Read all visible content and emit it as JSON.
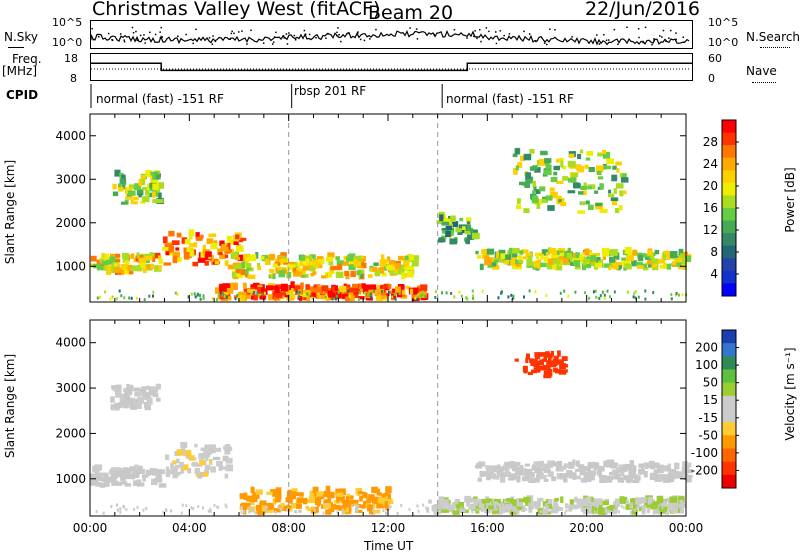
{
  "header": {
    "title": "Christmas Valley West (fitACF)",
    "beam": "Beam 20",
    "date": "22/Jun/2016"
  },
  "nsky_panel": {
    "left_label": "N.Sky",
    "right_label": "N.Search",
    "left_ticks": [
      "10^5",
      "10^0"
    ],
    "right_ticks": [
      "10^5",
      "10^0"
    ]
  },
  "freq_panel": {
    "left_label_1": "Freq.",
    "left_label_2": "[MHz]",
    "right_label": "Nave",
    "left_ticks": [
      "18",
      "8"
    ],
    "right_ticks": [
      "60",
      "0"
    ]
  },
  "cpid": {
    "label": "CPID",
    "segments": [
      {
        "text": "normal (fast) -151 RF",
        "start_h": 0,
        "end_h": 8
      },
      {
        "text": "rbsp 201 RF",
        "start_h": 8,
        "end_h": 14
      },
      {
        "text": "normal (fast) -151 RF",
        "start_h": 14,
        "end_h": 24
      }
    ]
  },
  "power_panel": {
    "ylabel": "Slant Range [km]",
    "yticks": [
      "4000",
      "3000",
      "2000",
      "1000"
    ],
    "cbar_label": "Power [dB]",
    "cbar_ticks": [
      "28",
      "24",
      "20",
      "16",
      "12",
      "8",
      "4"
    ],
    "cbar_colors": [
      "#ff0000",
      "#ff3300",
      "#ff7700",
      "#ffaa00",
      "#ffd000",
      "#eeee00",
      "#aadd22",
      "#66cc44",
      "#44aa55",
      "#338866",
      "#226677",
      "#2244aa",
      "#1133cc",
      "#0000ff"
    ]
  },
  "velocity_panel": {
    "ylabel": "Slant Range [km]",
    "yticks": [
      "4000",
      "3000",
      "2000",
      "1000"
    ],
    "cbar_label": "Velocity [m s⁻¹]",
    "cbar_ticks": [
      "200",
      "100",
      "50",
      "15",
      "-15",
      "-50",
      "-100",
      "-200"
    ],
    "cbar_colors": [
      "#1a3fb0",
      "#3377cc",
      "#2e8b57",
      "#5fbf3f",
      "#9acd32",
      "#cccccc",
      "#cccccc",
      "#ffcc33",
      "#ff9900",
      "#ff6600",
      "#ff3300",
      "#ee0000"
    ]
  },
  "xaxis": {
    "label": "Time UT",
    "ticks": [
      "00:00",
      "04:00",
      "08:00",
      "12:00",
      "16:00",
      "20:00",
      "00:00"
    ]
  },
  "chart_data": {
    "type": "heatmap",
    "title": "Christmas Valley West (fitACF)",
    "x_range_hours": [
      0,
      24
    ],
    "y_range_km": [
      180,
      4500
    ],
    "xlabel": "Time UT",
    "ylabel": "Slant Range [km]",
    "dashed_markers_hours": [
      8,
      14
    ],
    "frequency_MHz": {
      "segments": [
        {
          "start_h": 0,
          "end_h": 2.8,
          "value": 15
        },
        {
          "start_h": 2.8,
          "end_h": 15,
          "value": 12
        },
        {
          "start_h": 15,
          "end_h": 24,
          "value": 15
        }
      ]
    },
    "power_echo_regions": [
      {
        "t0": 0.0,
        "t1": 2.8,
        "r0": 800,
        "r1": 1200,
        "dB": 22
      },
      {
        "t0": 0.8,
        "t1": 2.8,
        "r0": 2400,
        "r1": 3100,
        "dB": 16
      },
      {
        "t0": 2.9,
        "t1": 6.0,
        "r0": 1000,
        "r1": 1700,
        "dB": 26
      },
      {
        "t0": 5.5,
        "t1": 13.0,
        "r0": 700,
        "r1": 1200,
        "dB": 20
      },
      {
        "t0": 5.0,
        "t1": 13.5,
        "r0": 200,
        "r1": 500,
        "dB": 28
      },
      {
        "t0": 13.8,
        "t1": 15.5,
        "r0": 1500,
        "r1": 2100,
        "dB": 14
      },
      {
        "t0": 15.5,
        "t1": 24.0,
        "r0": 900,
        "r1": 1300,
        "dB": 18
      },
      {
        "t0": 17.0,
        "t1": 21.5,
        "r0": 2200,
        "r1": 3600,
        "dB": 16
      }
    ],
    "velocity_echo_regions": [
      {
        "t0": 0.0,
        "t1": 2.8,
        "r0": 800,
        "r1": 1200,
        "v": 0
      },
      {
        "t0": 0.8,
        "t1": 2.8,
        "r0": 2500,
        "r1": 3000,
        "v": 0
      },
      {
        "t0": 3.0,
        "t1": 5.5,
        "r0": 1000,
        "r1": 1700,
        "v": -30
      },
      {
        "t0": 6.0,
        "t1": 12.0,
        "r0": 200,
        "r1": 700,
        "v": -100
      },
      {
        "t0": 13.5,
        "t1": 24.0,
        "r0": 200,
        "r1": 500,
        "v": 40
      },
      {
        "t0": 17.0,
        "t1": 19.0,
        "r0": 3200,
        "r1": 3700,
        "v": -200
      },
      {
        "t0": 15.5,
        "t1": 24.0,
        "r0": 900,
        "r1": 1300,
        "v": 0
      }
    ]
  }
}
